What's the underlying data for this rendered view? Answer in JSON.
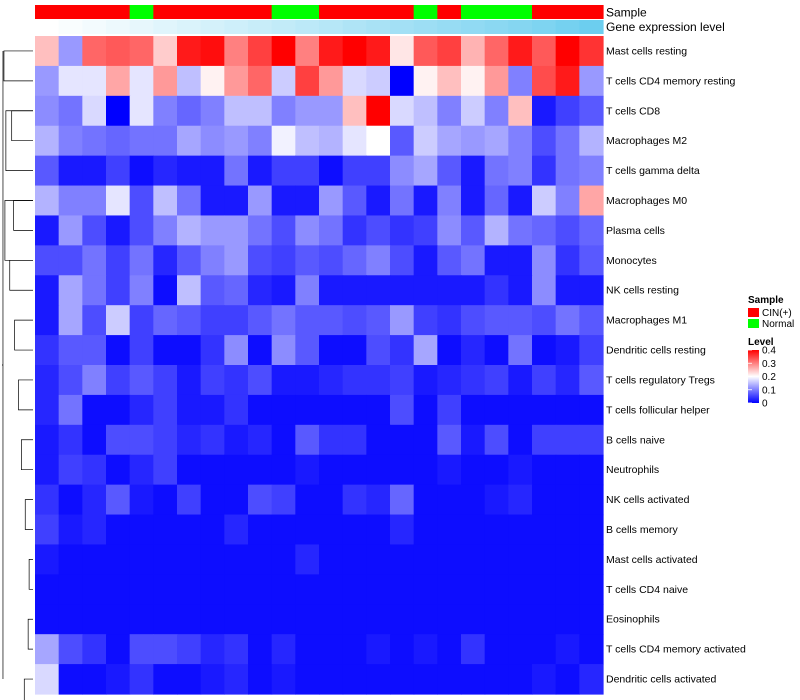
{
  "chart_data": {
    "type": "heatmap",
    "title": "",
    "annotation_labels": {
      "sample": "Sample",
      "gene_expression": "Gene expression level"
    },
    "sample_groups": [
      "CIN(+)",
      "CIN(+)",
      "CIN(+)",
      "CIN(+)",
      "Normal",
      "CIN(+)",
      "CIN(+)",
      "CIN(+)",
      "CIN(+)",
      "CIN(+)",
      "Normal",
      "Normal",
      "CIN(+)",
      "CIN(+)",
      "CIN(+)",
      "CIN(+)",
      "Normal",
      "CIN(+)",
      "Normal",
      "Normal",
      "Normal",
      "CIN(+)",
      "CIN(+)",
      "CIN(+)"
    ],
    "gene_expression_annotation": [
      0.0,
      0.04,
      0.08,
      0.12,
      0.16,
      0.2,
      0.24,
      0.28,
      0.32,
      0.36,
      0.4,
      0.44,
      0.48,
      0.52,
      0.56,
      0.6,
      0.64,
      0.68,
      0.72,
      0.76,
      0.8,
      0.84,
      0.9,
      0.96
    ],
    "rows": [
      "Mast cells resting",
      "T cells CD4 memory resting",
      "T cells CD8",
      "Macrophages M2",
      "T cells gamma delta",
      "Macrophages M0",
      "Plasma cells",
      "Monocytes",
      "NK cells resting",
      "Macrophages M1",
      "Dendritic cells resting",
      "T cells regulatory  Tregs",
      "T cells follicular helper",
      "B cells naive",
      "Neutrophils",
      "NK cells activated",
      "B cells memory",
      "Mast cells activated",
      "T cells CD4 naive",
      "Eosinophils",
      "T cells CD4 memory activated",
      "Dendritic cells activated"
    ],
    "values": [
      [
        0.25,
        0.12,
        0.32,
        0.33,
        0.32,
        0.24,
        0.38,
        0.39,
        0.3,
        0.35,
        0.4,
        0.3,
        0.38,
        0.4,
        0.38,
        0.22,
        0.33,
        0.35,
        0.26,
        0.32,
        0.38,
        0.33,
        0.4,
        0.36
      ],
      [
        0.12,
        0.18,
        0.18,
        0.27,
        0.18,
        0.28,
        0.15,
        0.21,
        0.28,
        0.32,
        0.16,
        0.35,
        0.28,
        0.17,
        0.16,
        0.0,
        0.21,
        0.25,
        0.21,
        0.28,
        0.1,
        0.34,
        0.38,
        0.12
      ],
      [
        0.11,
        0.09,
        0.17,
        0.0,
        0.18,
        0.1,
        0.08,
        0.1,
        0.15,
        0.15,
        0.1,
        0.12,
        0.12,
        0.25,
        0.4,
        0.17,
        0.15,
        0.1,
        0.16,
        0.1,
        0.25,
        0.02,
        0.05,
        0.07
      ],
      [
        0.14,
        0.1,
        0.09,
        0.08,
        0.09,
        0.09,
        0.13,
        0.11,
        0.12,
        0.1,
        0.19,
        0.15,
        0.14,
        0.18,
        0.2,
        0.07,
        0.16,
        0.13,
        0.12,
        0.13,
        0.1,
        0.06,
        0.09,
        0.14
      ],
      [
        0.07,
        0.02,
        0.02,
        0.05,
        0.01,
        0.03,
        0.02,
        0.02,
        0.09,
        0.02,
        0.05,
        0.05,
        0.01,
        0.05,
        0.05,
        0.11,
        0.13,
        0.07,
        0.02,
        0.09,
        0.1,
        0.04,
        0.09,
        0.1
      ],
      [
        0.14,
        0.1,
        0.1,
        0.18,
        0.06,
        0.15,
        0.09,
        0.02,
        0.02,
        0.12,
        0.02,
        0.02,
        0.12,
        0.07,
        0.02,
        0.09,
        0.02,
        0.1,
        0.02,
        0.08,
        0.02,
        0.16,
        0.1,
        0.27
      ],
      [
        0.02,
        0.12,
        0.06,
        0.02,
        0.06,
        0.1,
        0.14,
        0.12,
        0.12,
        0.09,
        0.06,
        0.11,
        0.09,
        0.04,
        0.06,
        0.04,
        0.05,
        0.11,
        0.07,
        0.14,
        0.09,
        0.08,
        0.06,
        0.08
      ],
      [
        0.06,
        0.06,
        0.09,
        0.05,
        0.09,
        0.03,
        0.07,
        0.1,
        0.12,
        0.06,
        0.05,
        0.07,
        0.06,
        0.08,
        0.1,
        0.06,
        0.02,
        0.07,
        0.09,
        0.02,
        0.02,
        0.11,
        0.04,
        0.07
      ],
      [
        0.02,
        0.13,
        0.09,
        0.05,
        0.1,
        0.01,
        0.15,
        0.07,
        0.08,
        0.03,
        0.02,
        0.1,
        0.02,
        0.02,
        0.02,
        0.02,
        0.02,
        0.02,
        0.02,
        0.04,
        0.02,
        0.11,
        0.02,
        0.02
      ],
      [
        0.02,
        0.13,
        0.06,
        0.16,
        0.05,
        0.08,
        0.07,
        0.05,
        0.05,
        0.07,
        0.09,
        0.07,
        0.07,
        0.06,
        0.07,
        0.12,
        0.05,
        0.04,
        0.06,
        0.07,
        0.07,
        0.06,
        0.09,
        0.07
      ],
      [
        0.04,
        0.07,
        0.07,
        0.01,
        0.05,
        0.01,
        0.01,
        0.04,
        0.11,
        0.01,
        0.11,
        0.07,
        0.01,
        0.01,
        0.06,
        0.04,
        0.13,
        0.01,
        0.03,
        0.01,
        0.09,
        0.01,
        0.02,
        0.05
      ],
      [
        0.03,
        0.06,
        0.1,
        0.05,
        0.07,
        0.05,
        0.02,
        0.05,
        0.04,
        0.06,
        0.02,
        0.02,
        0.03,
        0.04,
        0.04,
        0.05,
        0.02,
        0.03,
        0.04,
        0.05,
        0.02,
        0.05,
        0.03,
        0.07
      ],
      [
        0.03,
        0.09,
        0.01,
        0.01,
        0.03,
        0.05,
        0.02,
        0.02,
        0.04,
        0.01,
        0.01,
        0.01,
        0.01,
        0.01,
        0.01,
        0.06,
        0.01,
        0.05,
        0.01,
        0.01,
        0.01,
        0.01,
        0.01,
        0.01
      ],
      [
        0.02,
        0.04,
        0.01,
        0.06,
        0.06,
        0.05,
        0.03,
        0.04,
        0.02,
        0.03,
        0.01,
        0.07,
        0.04,
        0.04,
        0.01,
        0.01,
        0.01,
        0.07,
        0.02,
        0.06,
        0.01,
        0.05,
        0.05,
        0.05
      ],
      [
        0.02,
        0.05,
        0.04,
        0.01,
        0.03,
        0.05,
        0.01,
        0.01,
        0.01,
        0.01,
        0.01,
        0.02,
        0.01,
        0.01,
        0.01,
        0.01,
        0.01,
        0.02,
        0.01,
        0.01,
        0.02,
        0.01,
        0.01,
        0.01
      ],
      [
        0.04,
        0.01,
        0.03,
        0.07,
        0.02,
        0.01,
        0.05,
        0.01,
        0.01,
        0.06,
        0.05,
        0.01,
        0.01,
        0.04,
        0.03,
        0.08,
        0.01,
        0.01,
        0.01,
        0.02,
        0.03,
        0.01,
        0.01,
        0.01
      ],
      [
        0.05,
        0.02,
        0.03,
        0.01,
        0.01,
        0.01,
        0.01,
        0.01,
        0.03,
        0.01,
        0.01,
        0.01,
        0.01,
        0.01,
        0.01,
        0.03,
        0.01,
        0.01,
        0.01,
        0.01,
        0.01,
        0.01,
        0.01,
        0.01
      ],
      [
        0.02,
        0.01,
        0.01,
        0.01,
        0.01,
        0.01,
        0.01,
        0.01,
        0.01,
        0.01,
        0.01,
        0.03,
        0.01,
        0.01,
        0.01,
        0.01,
        0.01,
        0.01,
        0.01,
        0.01,
        0.01,
        0.01,
        0.01,
        0.01
      ],
      [
        0.01,
        0.01,
        0.01,
        0.01,
        0.01,
        0.01,
        0.01,
        0.01,
        0.01,
        0.01,
        0.01,
        0.01,
        0.01,
        0.01,
        0.01,
        0.01,
        0.01,
        0.01,
        0.01,
        0.01,
        0.01,
        0.01,
        0.01,
        0.01
      ],
      [
        0.01,
        0.01,
        0.01,
        0.01,
        0.01,
        0.01,
        0.01,
        0.01,
        0.01,
        0.01,
        0.01,
        0.01,
        0.01,
        0.01,
        0.01,
        0.01,
        0.01,
        0.01,
        0.01,
        0.01,
        0.01,
        0.01,
        0.01,
        0.01
      ],
      [
        0.13,
        0.06,
        0.04,
        0.01,
        0.06,
        0.06,
        0.05,
        0.03,
        0.04,
        0.01,
        0.03,
        0.01,
        0.01,
        0.01,
        0.02,
        0.01,
        0.02,
        0.01,
        0.04,
        0.01,
        0.01,
        0.01,
        0.02,
        0.01
      ],
      [
        0.17,
        0.01,
        0.01,
        0.02,
        0.04,
        0.01,
        0.01,
        0.02,
        0.03,
        0.01,
        0.02,
        0.01,
        0.01,
        0.01,
        0.01,
        0.01,
        0.01,
        0.01,
        0.01,
        0.01,
        0.01,
        0.02,
        0.01,
        0.03
      ]
    ],
    "color_scale": {
      "min": 0,
      "max": 0.4,
      "low": "#0000ff",
      "mid": "#ffffff",
      "high": "#ff0000",
      "mid_value": 0.2
    },
    "legend": {
      "sample": {
        "title": "Sample",
        "items": [
          {
            "label": "CIN(+)",
            "color": "#ff0000"
          },
          {
            "label": "Normal",
            "color": "#00ff00"
          }
        ]
      },
      "level": {
        "title": "Level",
        "ticks": [
          "0.4",
          "0.3",
          "0.2",
          "0.1",
          "0"
        ],
        "tick_values": [
          0.4,
          0.3,
          0.2,
          0.1,
          0
        ]
      },
      "placement": "right"
    },
    "annotation_gradient": {
      "from": "#ffffff",
      "to": "#66ccee"
    },
    "row_dendrogram": {
      "merges": [
        [
          0,
          1,
          0.3
        ],
        [
          2,
          3,
          0.22
        ],
        [
          2,
          4,
          0.28
        ],
        [
          5,
          6,
          0.2
        ],
        [
          7,
          8,
          0.24
        ],
        [
          5,
          7,
          0.29
        ],
        [
          9,
          10,
          0.19
        ],
        [
          11,
          12,
          0.15
        ],
        [
          13,
          14,
          0.12
        ],
        [
          15,
          16,
          0.08
        ],
        [
          17,
          18,
          0.04
        ],
        [
          19,
          20,
          0.05
        ],
        [
          21,
          22,
          0.09
        ]
      ],
      "side": "left"
    }
  }
}
